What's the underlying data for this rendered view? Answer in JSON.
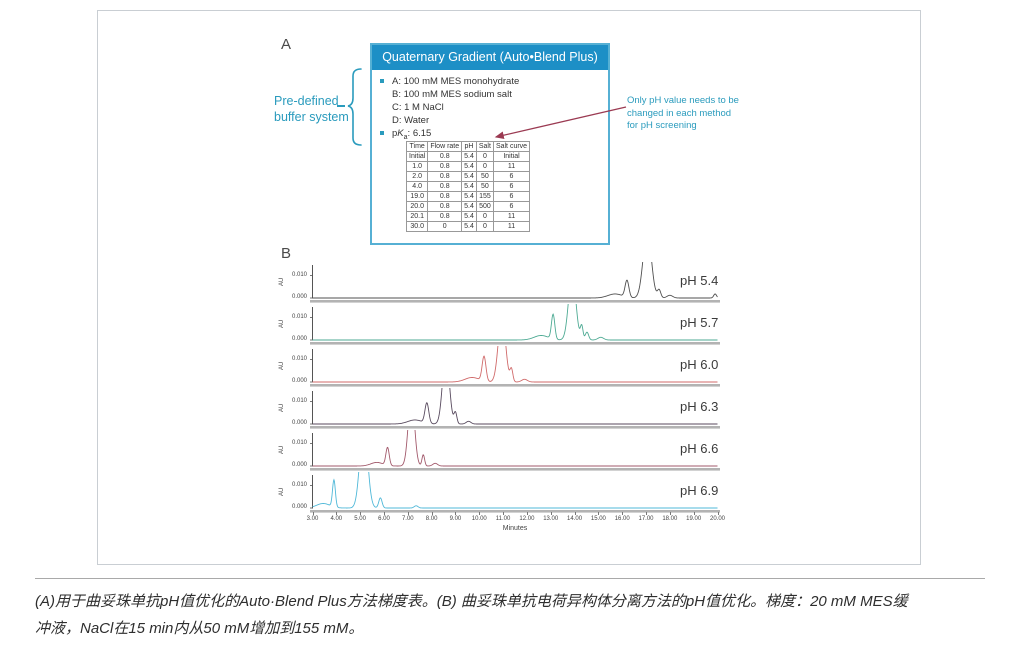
{
  "figure": {
    "panel_a": {
      "label": "A",
      "header": "Quaternary Gradient (Auto•Blend Plus)",
      "buffer_items": [
        {
          "bullet": true,
          "text": "A: 100 mM MES monohydrate"
        },
        {
          "bullet": false,
          "text": "B: 100 mM MES sodium salt"
        },
        {
          "bullet": false,
          "text": "C: 1 M NaCl"
        },
        {
          "bullet": false,
          "text": "D: Water"
        },
        {
          "bullet": true,
          "pka": true,
          "pre": "p",
          "k": "K",
          "sub": "a",
          "post": ": 6.15"
        }
      ],
      "side_label_lines": [
        "Pre-defined",
        "buffer system"
      ],
      "annotation_lines": [
        "Only pH value needs to be",
        "changed in each method",
        "for pH screening"
      ],
      "table": {
        "headers": [
          "Time",
          "Flow rate",
          "pH",
          "Salt",
          "Salt curve"
        ],
        "rows": [
          [
            "Initial",
            "0.8",
            "5.4",
            "0",
            "Initial"
          ],
          [
            "1.0",
            "0.8",
            "5.4",
            "0",
            "11"
          ],
          [
            "2.0",
            "0.8",
            "5.4",
            "50",
            "6"
          ],
          [
            "4.0",
            "0.8",
            "5.4",
            "50",
            "6"
          ],
          [
            "19.0",
            "0.8",
            "5.4",
            "155",
            "6"
          ],
          [
            "20.0",
            "0.8",
            "5.4",
            "500",
            "6"
          ],
          [
            "20.1",
            "0.8",
            "5.4",
            "0",
            "11"
          ],
          [
            "30.0",
            "0",
            "5.4",
            "0",
            "11"
          ]
        ]
      }
    },
    "panel_b": {
      "label": "B"
    }
  },
  "chart_data": {
    "type": "line",
    "title": "pH screening chromatogram overlay, six stacked traces",
    "x": {
      "label": "Minutes",
      "min": 3,
      "max": 20,
      "tick_labels": [
        "3.00",
        "4.00",
        "5.00",
        "6.00",
        "7.00",
        "8.00",
        "9.00",
        "10.00",
        "11.00",
        "12.00",
        "13.00",
        "14.00",
        "15.00",
        "16.00",
        "17.00",
        "18.00",
        "19.00",
        "20.00"
      ]
    },
    "y": {
      "label": "AU",
      "tick_labels": [
        "0.010",
        "0.000"
      ],
      "ylim_AU": [
        -0.0018,
        0.016
      ]
    },
    "peak_format": "[retention_time_min, peak_height_AU, peak_sigma_min]; main peaks clip at strip top",
    "panels": [
      {
        "label": "pH 5.4",
        "color": "#4f4f4f",
        "peaks": [
          [
            15.7,
            0.0018,
            0.3
          ],
          [
            16.2,
            0.0075,
            0.08
          ],
          [
            17.05,
            0.03,
            0.17
          ],
          [
            17.55,
            0.0035,
            0.07
          ],
          [
            18.0,
            0.0012,
            0.12
          ],
          [
            19.9,
            0.0018,
            0.06
          ]
        ]
      },
      {
        "label": "pH 5.7",
        "color": "#4daa93",
        "peaks": [
          [
            12.6,
            0.002,
            0.3
          ],
          [
            13.1,
            0.011,
            0.07
          ],
          [
            13.9,
            0.03,
            0.15
          ],
          [
            14.3,
            0.006,
            0.055
          ],
          [
            14.52,
            0.0035,
            0.07
          ],
          [
            15.1,
            0.0012,
            0.12
          ]
        ]
      },
      {
        "label": "pH 6.0",
        "color": "#d06a6a",
        "peaks": [
          [
            9.7,
            0.002,
            0.3
          ],
          [
            10.2,
            0.011,
            0.08
          ],
          [
            10.95,
            0.03,
            0.15
          ],
          [
            11.35,
            0.0055,
            0.06
          ],
          [
            11.9,
            0.0012,
            0.12
          ]
        ]
      },
      {
        "label": "pH 6.3",
        "color": "#584a5e",
        "peaks": [
          [
            7.3,
            0.0018,
            0.3
          ],
          [
            7.8,
            0.009,
            0.08
          ],
          [
            8.6,
            0.032,
            0.14
          ],
          [
            9.0,
            0.005,
            0.06
          ],
          [
            9.55,
            0.0012,
            0.1
          ]
        ]
      },
      {
        "label": "pH 6.6",
        "color": "#a2596b",
        "peaks": [
          [
            5.7,
            0.0016,
            0.25
          ],
          [
            6.15,
            0.008,
            0.07
          ],
          [
            7.15,
            0.032,
            0.13
          ],
          [
            7.65,
            0.005,
            0.055
          ],
          [
            8.15,
            0.0012,
            0.1
          ]
        ]
      },
      {
        "label": "pH 6.9",
        "color": "#4fb8d8",
        "peaks": [
          [
            3.45,
            0.002,
            0.28
          ],
          [
            3.9,
            0.012,
            0.06
          ],
          [
            5.15,
            0.038,
            0.16
          ],
          [
            5.85,
            0.0045,
            0.07
          ],
          [
            7.35,
            0.001,
            0.08
          ]
        ]
      }
    ]
  },
  "caption": {
    "lines": [
      "(A)用于曲妥珠单抗pH值优化的Auto·Blend Plus方法梯度表。(B) 曲妥珠单抗电荷异构体分离方法的pH值优化。梯度：20 mM MES缓",
      "冲液，NaCl在15 min内从50 mM增加到155 mM。"
    ]
  },
  "colors": {
    "header_bg": "#1d8fc6",
    "teal_text": "#2a9bbd",
    "box_border": "#56b0d4",
    "arrow": "#9b3a52",
    "axis_bar": "#b3b3b3",
    "axis_line": "#555555"
  }
}
